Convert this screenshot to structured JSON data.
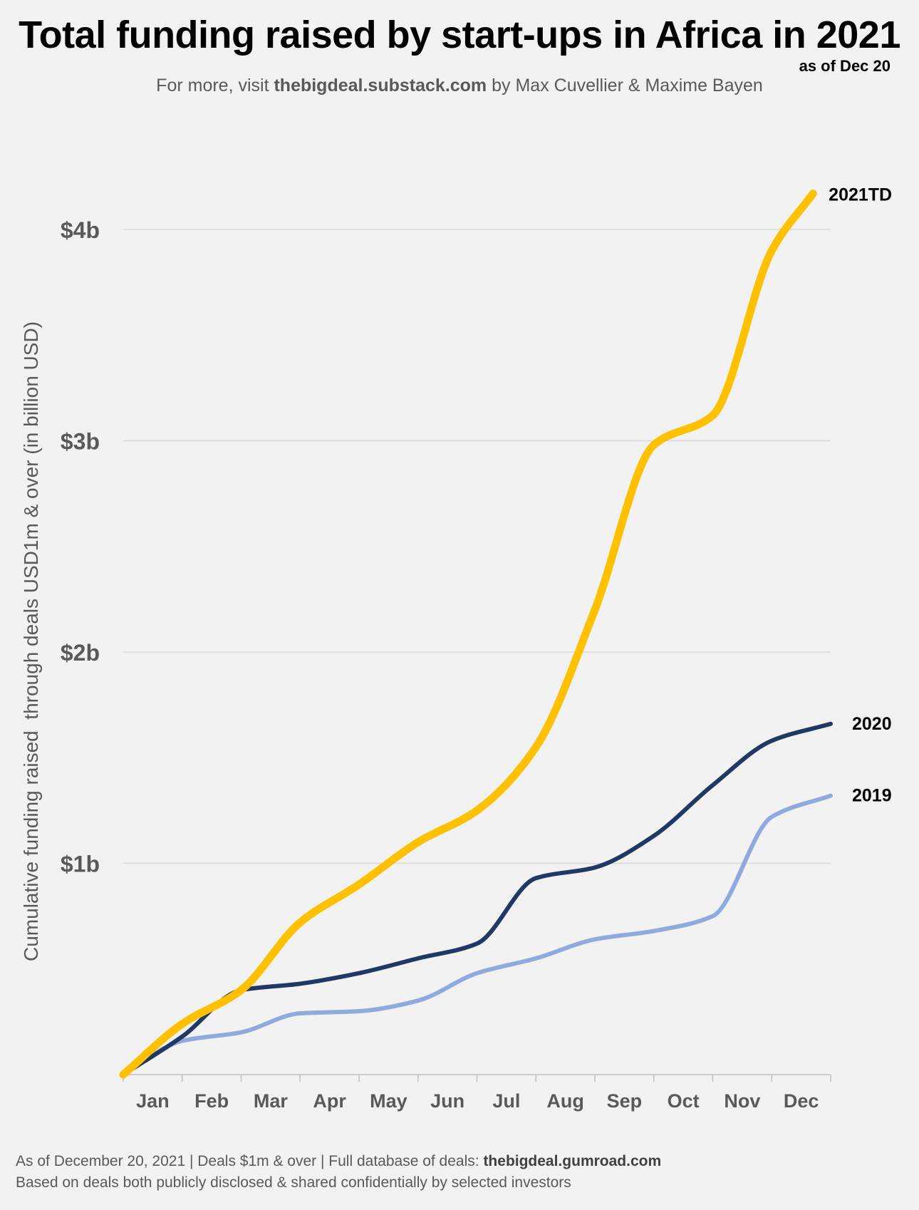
{
  "title": "Total funding raised by start-ups in Africa in 2021",
  "as_of": "as of Dec 20",
  "subtitle": {
    "prefix": "For more, visit ",
    "link": "thebigdeal.substack.com",
    "suffix": " by Max Cuvellier & Maxime Bayen"
  },
  "footer": {
    "line1_prefix": "As of December 20, 2021 | Deals $1m & over | Full database of deals: ",
    "line1_link": "thebigdeal.gumroad.com",
    "line2": "Based on deals both publicly disclosed & shared confidentially by selected investors"
  },
  "chart_data": {
    "type": "line",
    "title": "Total funding raised by start-ups in Africa in 2021",
    "ylabel": "Cumulative funding raised  through deals USD1m & over (in billion USD)",
    "xlabel": "",
    "categories": [
      "Jan",
      "Feb",
      "Mar",
      "Apr",
      "May",
      "Jun",
      "Jul",
      "Aug",
      "Sep",
      "Oct",
      "Nov",
      "Dec"
    ],
    "yticks": [
      {
        "value": 1,
        "label": "$1b"
      },
      {
        "value": 2,
        "label": "$2b"
      },
      {
        "value": 3,
        "label": "$3b"
      },
      {
        "value": 4,
        "label": "$4b"
      }
    ],
    "ylim": [
      0,
      4.5
    ],
    "grid": true,
    "series": [
      {
        "name": "2019",
        "color": "#8faadc",
        "x": [
          0,
          1,
          2,
          3,
          4,
          5,
          6,
          7,
          8,
          9,
          10,
          11,
          12
        ],
        "values": [
          0.0,
          0.16,
          0.2,
          0.29,
          0.3,
          0.35,
          0.48,
          0.55,
          0.64,
          0.68,
          0.75,
          1.22,
          1.32
        ]
      },
      {
        "name": "2020",
        "color": "#1f3864",
        "x": [
          0,
          1,
          2,
          3,
          4,
          5,
          6,
          7,
          8,
          9,
          10,
          11,
          12
        ],
        "values": [
          0.0,
          0.18,
          0.4,
          0.43,
          0.48,
          0.55,
          0.62,
          0.93,
          0.98,
          1.13,
          1.37,
          1.58,
          1.66
        ]
      },
      {
        "name": "2021TD",
        "color": "#ffc000",
        "x": [
          0,
          1,
          2,
          3,
          4,
          5,
          6,
          7,
          8,
          9,
          10,
          11,
          11.7
        ],
        "values": [
          0.0,
          0.24,
          0.4,
          0.72,
          0.9,
          1.1,
          1.25,
          1.55,
          2.2,
          2.98,
          3.12,
          3.9,
          4.17
        ]
      }
    ]
  }
}
